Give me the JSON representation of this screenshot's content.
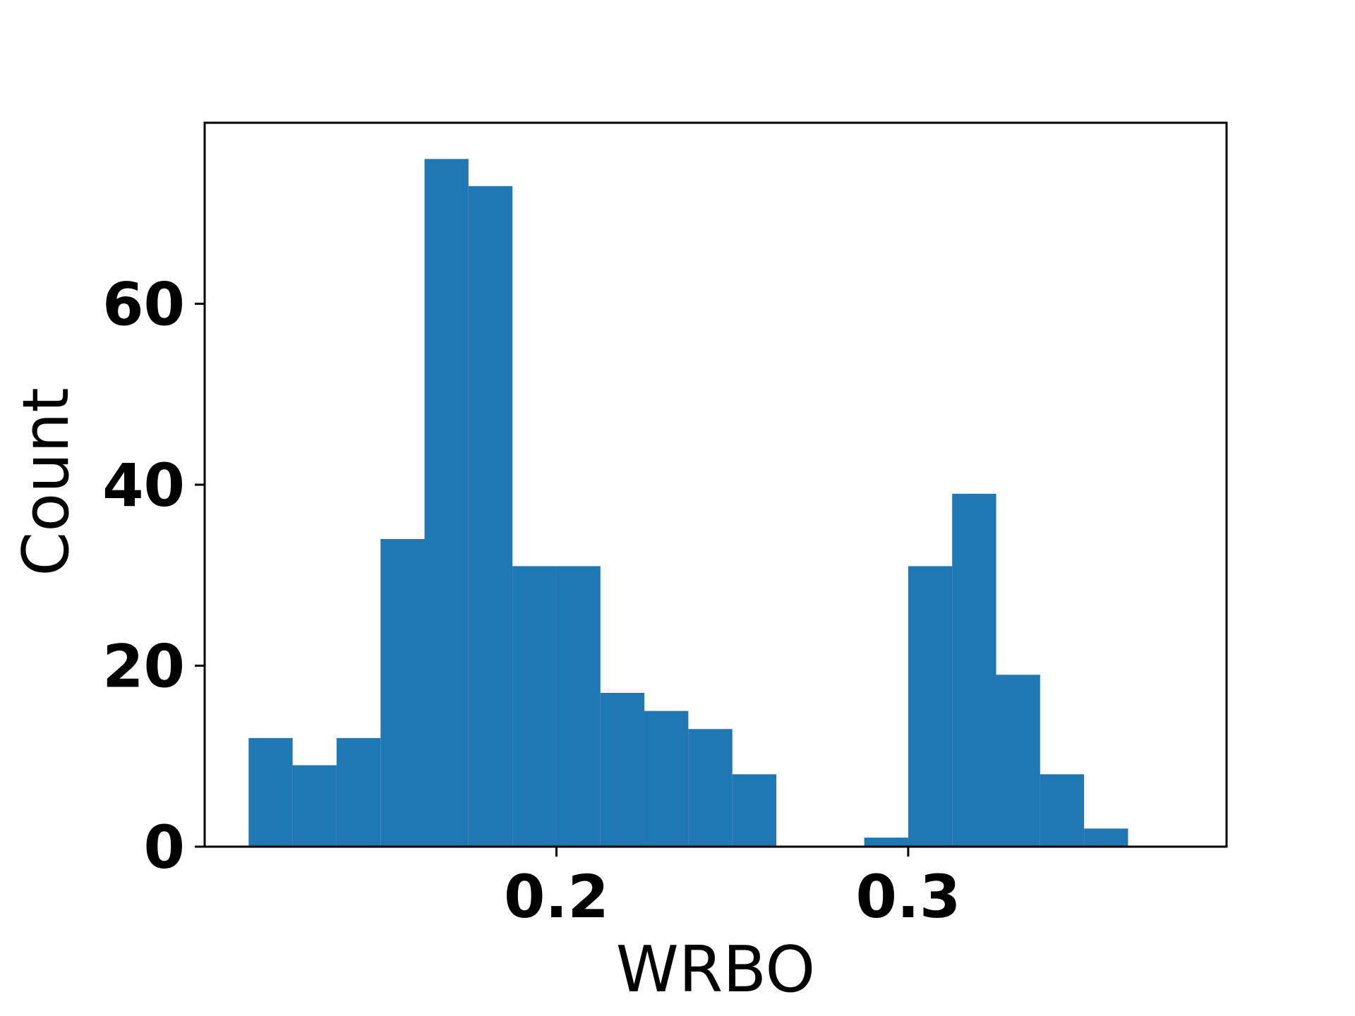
{
  "chart_data": {
    "type": "bar",
    "subtype": "histogram",
    "xlabel": "WRBO",
    "ylabel": "Count",
    "xlim": [
      0.1,
      0.3905
    ],
    "ylim": [
      0,
      80
    ],
    "x_ticks": [
      {
        "value": 0.2,
        "label": "0.2"
      },
      {
        "value": 0.3,
        "label": "0.3"
      }
    ],
    "y_ticks": [
      {
        "value": 0,
        "label": "0"
      },
      {
        "value": 20,
        "label": "20"
      },
      {
        "value": 40,
        "label": "40"
      },
      {
        "value": 60,
        "label": "60"
      }
    ],
    "bar_color": "#1f77b4",
    "grid": false,
    "bins": [
      {
        "x0": 0.1125,
        "x1": 0.125,
        "count": 12
      },
      {
        "x0": 0.125,
        "x1": 0.1375,
        "count": 9
      },
      {
        "x0": 0.1375,
        "x1": 0.15,
        "count": 12
      },
      {
        "x0": 0.15,
        "x1": 0.1625,
        "count": 34
      },
      {
        "x0": 0.1625,
        "x1": 0.175,
        "count": 76
      },
      {
        "x0": 0.175,
        "x1": 0.1875,
        "count": 73
      },
      {
        "x0": 0.1875,
        "x1": 0.2,
        "count": 31
      },
      {
        "x0": 0.2,
        "x1": 0.2125,
        "count": 31
      },
      {
        "x0": 0.2125,
        "x1": 0.225,
        "count": 17
      },
      {
        "x0": 0.225,
        "x1": 0.2375,
        "count": 15
      },
      {
        "x0": 0.2375,
        "x1": 0.25,
        "count": 13
      },
      {
        "x0": 0.25,
        "x1": 0.2625,
        "count": 8
      },
      {
        "x0": 0.2625,
        "x1": 0.275,
        "count": 0
      },
      {
        "x0": 0.275,
        "x1": 0.2875,
        "count": 0
      },
      {
        "x0": 0.2875,
        "x1": 0.3,
        "count": 1
      },
      {
        "x0": 0.3,
        "x1": 0.3125,
        "count": 31
      },
      {
        "x0": 0.3125,
        "x1": 0.325,
        "count": 39
      },
      {
        "x0": 0.325,
        "x1": 0.3375,
        "count": 19
      },
      {
        "x0": 0.3375,
        "x1": 0.35,
        "count": 8
      },
      {
        "x0": 0.35,
        "x1": 0.3625,
        "count": 2
      }
    ]
  }
}
